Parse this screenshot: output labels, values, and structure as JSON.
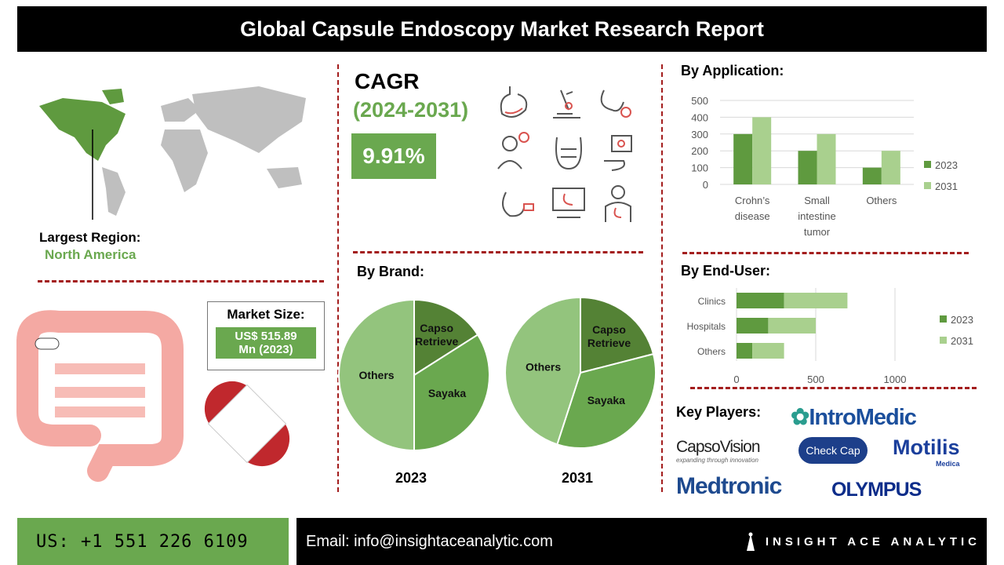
{
  "header": {
    "title": "Global Capsule Endoscopy Market Research Report"
  },
  "region": {
    "label": "Largest Region:",
    "value": "North America"
  },
  "cagr": {
    "label": "CAGR",
    "period": "(2024-2031)",
    "value": "9.91%"
  },
  "market_size": {
    "label": "Market Size:",
    "value_line1": "US$ 515.89",
    "value_line2": "Mn (2023)"
  },
  "sections": {
    "application": "By Application:",
    "brand": "By Brand:",
    "end_user": "By End-User:",
    "key_players": "Key Players:"
  },
  "key_players": [
    "IntroMedic",
    "CapsoVision",
    "Check Cap",
    "Motilis",
    "Medtronic",
    "OLYMPUS"
  ],
  "key_player_sub": {
    "capsovision": "expanding through innovation",
    "motilis": "Medica"
  },
  "footer": {
    "phone": "US: +1 551 226 6109",
    "email": "Email: info@insightaceanalytic.com",
    "brand": "INSIGHT ACE ANALYTIC"
  },
  "colors": {
    "dark_green": "#5f9a3f",
    "light_green": "#a9d08e",
    "accent_red": "#a31d1d"
  },
  "chart_data": [
    {
      "type": "bar",
      "title": "By Application:",
      "categories": [
        "Crohn’s disease",
        "Small intestine tumor",
        "Others"
      ],
      "series": [
        {
          "name": "2023",
          "values": [
            300,
            200,
            100
          ]
        },
        {
          "name": "2031",
          "values": [
            400,
            300,
            200
          ]
        }
      ],
      "ylim": [
        0,
        500
      ],
      "yticks": [
        "0",
        "100",
        "200",
        "300",
        "400",
        "500"
      ],
      "grid": true,
      "legend": "right"
    },
    {
      "type": "bar",
      "orientation": "horizontal-stacked",
      "title": "By End-User:",
      "categories": [
        "Clinics",
        "Hospitals",
        "Others"
      ],
      "series": [
        {
          "name": "2023",
          "values": [
            300,
            200,
            100
          ]
        },
        {
          "name": "2031",
          "values": [
            400,
            300,
            200
          ]
        }
      ],
      "xlim": [
        0,
        1000
      ],
      "xticks": [
        "0",
        "500",
        "1000"
      ],
      "grid": true,
      "legend": "right"
    },
    {
      "type": "pie",
      "title": "2023",
      "labels": [
        "Capso Retrieve",
        "Sayaka",
        "Others"
      ],
      "values": [
        16,
        34,
        50
      ]
    },
    {
      "type": "pie",
      "title": "2031",
      "labels": [
        "Capso Retrieve",
        "Sayaka",
        "Others"
      ],
      "values": [
        21,
        34,
        45
      ]
    }
  ]
}
